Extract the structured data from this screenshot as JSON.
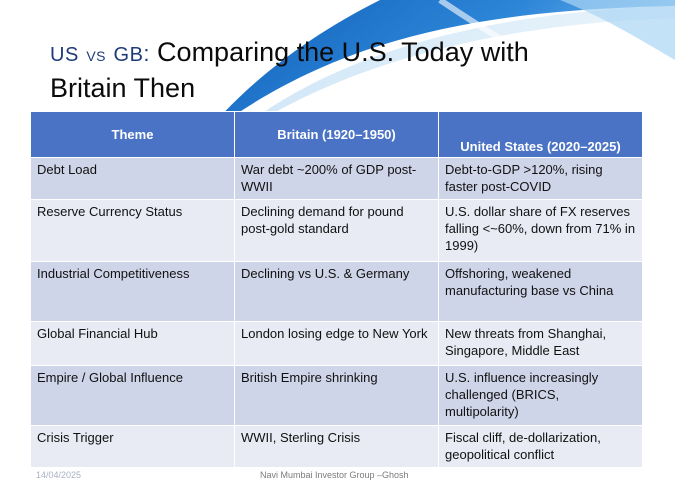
{
  "slide": {
    "title_part1": "US",
    "title_vs": "VS",
    "title_part2": "GB",
    "title_sep": ":",
    "title_main": " Comparing the U.S. Today with Britain Then"
  },
  "table": {
    "headers": [
      "Theme",
      "Britain (1920–1950)",
      "United States (2020–2025)"
    ],
    "rows": [
      [
        "Debt Load",
        "War debt ~200% of GDP post-WWII",
        "Debt-to-GDP >120%, rising faster post-COVID"
      ],
      [
        "Reserve Currency Status",
        "Declining demand for pound post-gold standard",
        "U.S. dollar share of FX reserves falling <~60%, down from 71% in 1999)"
      ],
      [
        "Industrial Competitiveness",
        "Declining vs U.S. & Germany",
        "Offshoring, weakened manufacturing base vs China"
      ],
      [
        "Global Financial Hub",
        "London losing edge to New York",
        "New threats from Shanghai, Singapore, Middle East"
      ],
      [
        "Empire / Global Influence",
        "British Empire shrinking",
        "U.S. influence increasingly challenged (BRICS, multipolarity)"
      ],
      [
        "Crisis Trigger",
        "WWII, Sterling Crisis",
        "Fiscal cliff, de-dollarization, geopolitical conflict"
      ]
    ]
  },
  "footer": {
    "date": "14/04/2025",
    "center": "Navi Mumbai Investor Group –Ghosh"
  },
  "colors": {
    "header_bg": "#4b73c5",
    "row_dark": "#cfd5e8",
    "row_light": "#e8ebf4",
    "swoosh": "#2e86d8"
  }
}
